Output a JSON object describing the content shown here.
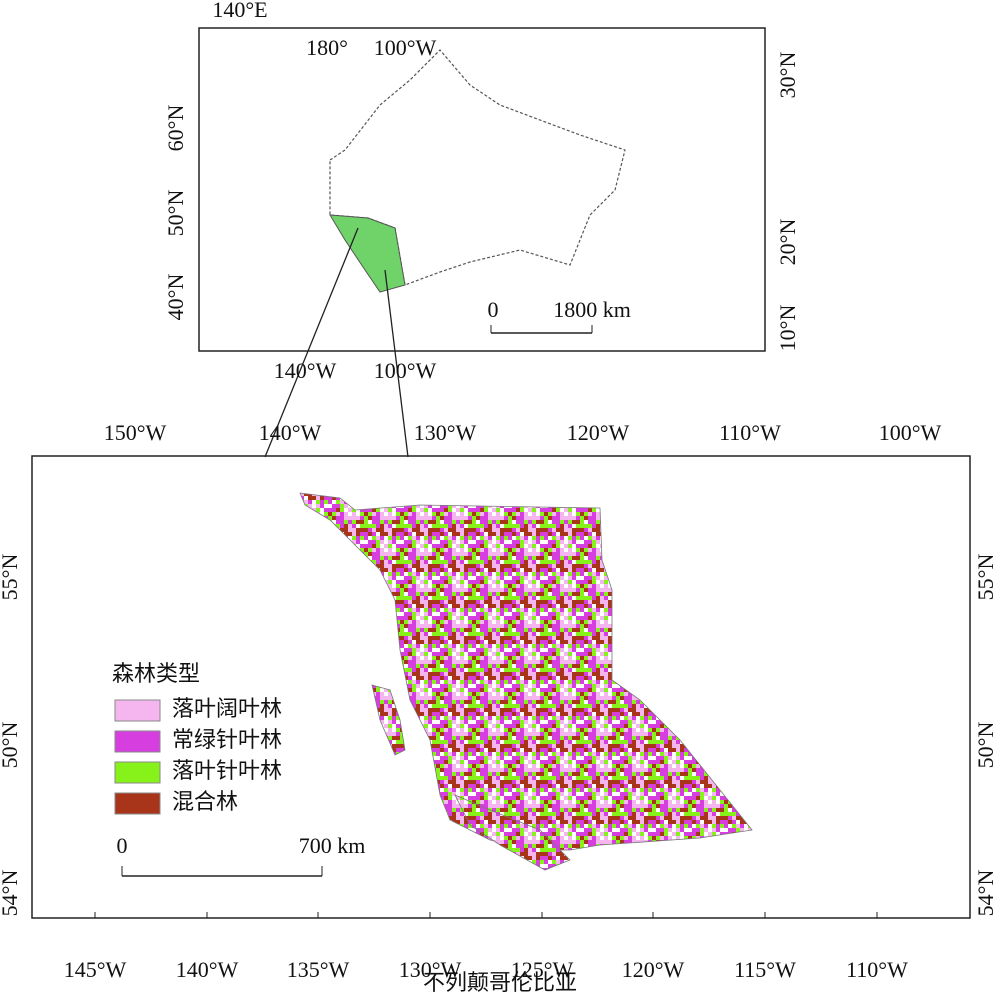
{
  "inset": {
    "corner_label": "140°E",
    "top_labels": [
      "180°",
      "100°W"
    ],
    "left_labels": [
      "60°N",
      "50°N",
      "40°N"
    ],
    "right_labels": [
      "30°N",
      "20°N",
      "10°N"
    ],
    "bottom_labels": [
      "140°W",
      "100°W"
    ],
    "scale_labels": [
      "0",
      "1800 km"
    ]
  },
  "main": {
    "top_labels": [
      "150°W",
      "140°W",
      "130°W",
      "120°W",
      "110°W",
      "100°W"
    ],
    "bottom_labels": [
      "145°W",
      "140°W",
      "135°W",
      "130°W",
      "125°W",
      "120°W",
      "115°W",
      "110°W"
    ],
    "left_labels": [
      "55°N",
      "50°N",
      "54°N"
    ],
    "right_labels": [
      "55°N",
      "50°N",
      "54°N"
    ],
    "legend": {
      "title": "森林类型",
      "items": [
        {
          "label": "落叶阔叶林",
          "color": "#f5b6f0"
        },
        {
          "label": "常绿针叶林",
          "color": "#d63ee0"
        },
        {
          "label": "落叶针叶林",
          "color": "#86f21a"
        },
        {
          "label": "混合林",
          "color": "#a8341a"
        }
      ]
    },
    "scale_labels": [
      "0",
      "700 km"
    ]
  },
  "caption": "不列颠哥伦比亚"
}
